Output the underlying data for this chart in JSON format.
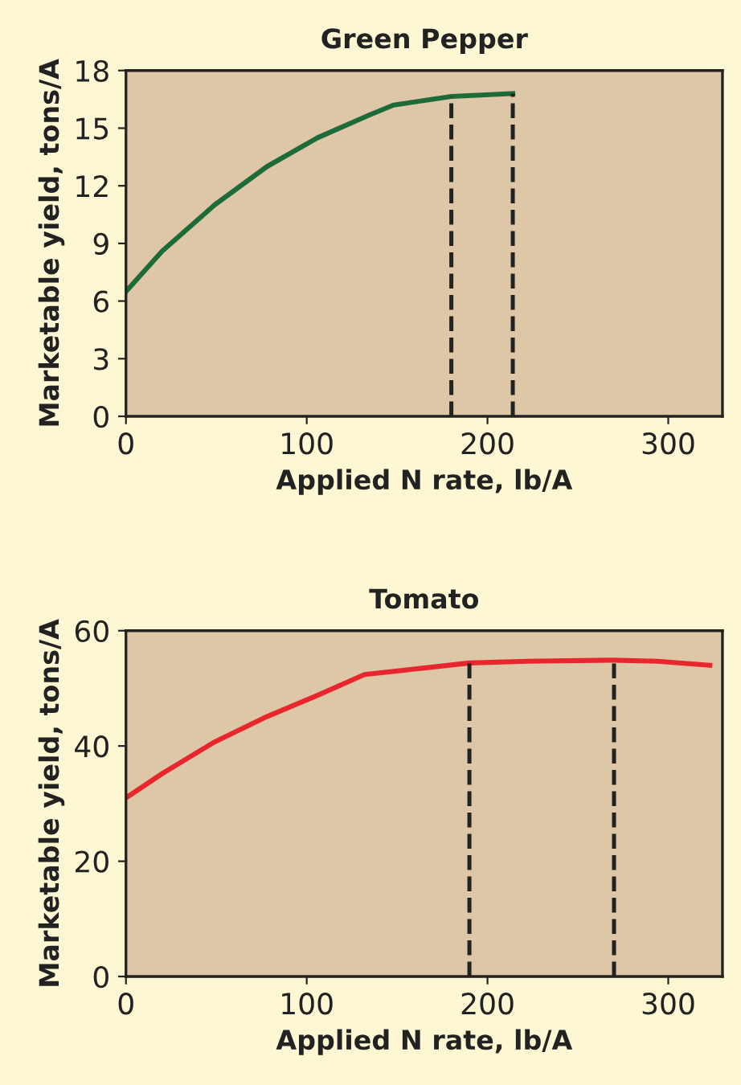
{
  "chart_data": [
    {
      "type": "line",
      "title": "Green Pepper",
      "xlabel": "Applied N rate, lb/A",
      "ylabel": "Marketable yield, tons/A",
      "xlim": [
        0,
        330
      ],
      "xticks": [
        0,
        100,
        200,
        300
      ],
      "ylim": [
        0,
        18
      ],
      "yticks": [
        0,
        3,
        6,
        9,
        12,
        15,
        18
      ],
      "grid": false,
      "legend": false,
      "series": [
        {
          "color": "#1e6b3a",
          "x": [
            0,
            20,
            49,
            78,
            106,
            135,
            148,
            180,
            214
          ],
          "values": [
            6.5,
            8.6,
            11.0,
            13.0,
            14.5,
            15.7,
            16.2,
            16.65,
            16.8
          ]
        }
      ],
      "ref_lines": [
        {
          "axis": "x",
          "value": 180,
          "line_style": "dashed",
          "color": "#222222"
        },
        {
          "axis": "x",
          "value": 214,
          "line_style": "dashed",
          "color": "#222222"
        }
      ]
    },
    {
      "type": "line",
      "title": "Tomato",
      "xlabel": "Applied N rate, lb/A",
      "ylabel": "Marketable yield, tons/A",
      "xlim": [
        0,
        330
      ],
      "xticks": [
        0,
        100,
        200,
        300
      ],
      "ylim": [
        0,
        60
      ],
      "yticks": [
        0,
        20,
        40,
        60
      ],
      "grid": false,
      "legend": false,
      "series": [
        {
          "color": "#e8262e",
          "x": [
            0,
            20,
            49,
            78,
            106,
            132,
            164,
            190,
            222,
            269,
            294,
            323
          ],
          "values": [
            31.0,
            35.2,
            40.7,
            45.1,
            48.8,
            52.4,
            53.5,
            54.4,
            54.7,
            54.9,
            54.7,
            54.0
          ]
        }
      ],
      "ref_lines": [
        {
          "axis": "x",
          "value": 190,
          "line_style": "dashed",
          "color": "#222222"
        },
        {
          "axis": "x",
          "value": 270,
          "line_style": "dashed",
          "color": "#222222"
        }
      ]
    }
  ]
}
